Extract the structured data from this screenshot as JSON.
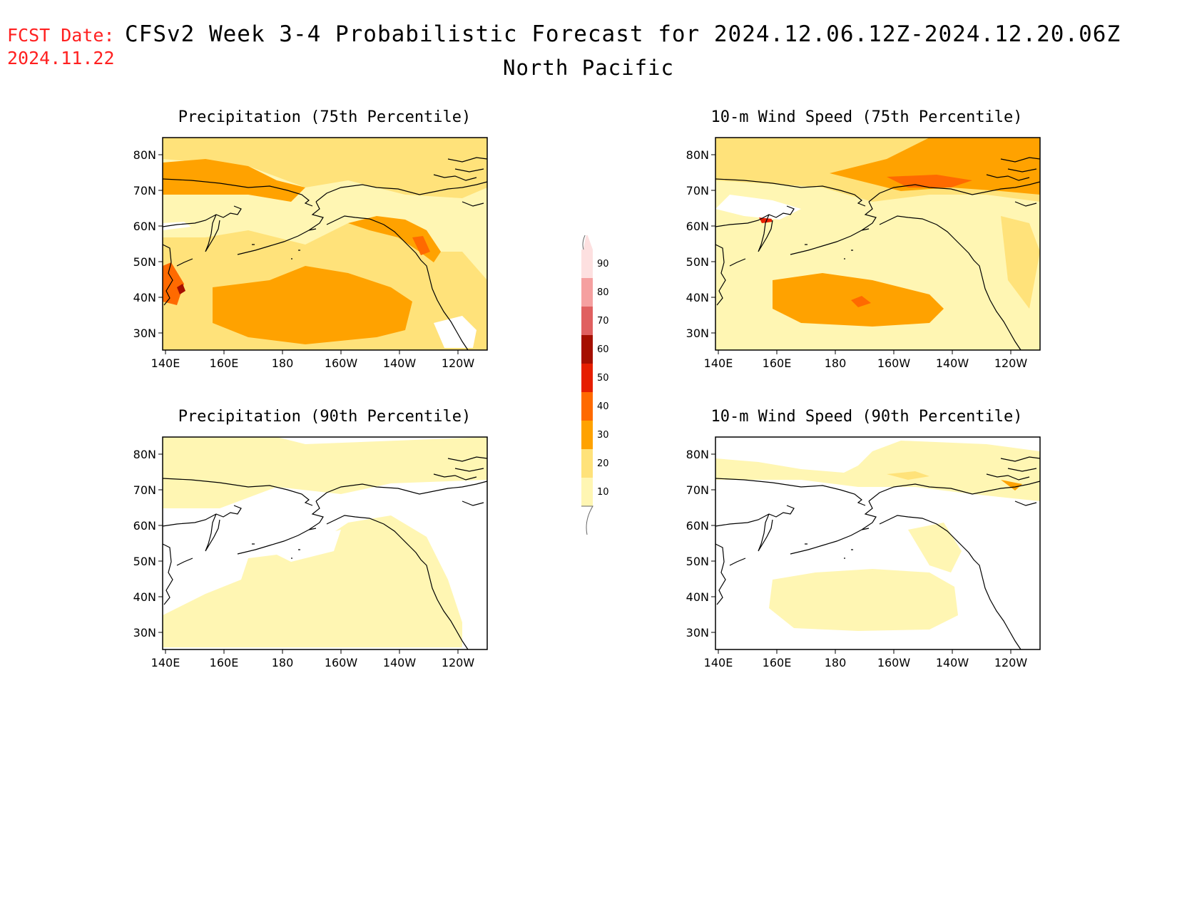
{
  "header": {
    "fcst_label": "FCST Date:",
    "fcst_date": "2024.11.22",
    "title": "CFSv2 Week 3-4 Probabilistic Forecast for 2024.12.06.12Z-2024.12.20.06Z",
    "region": "North Pacific"
  },
  "panels": [
    {
      "title": "Precipitation (75th Percentile)"
    },
    {
      "title": "10-m Wind Speed (75th Percentile)"
    },
    {
      "title": "Precipitation (90th Percentile)"
    },
    {
      "title": "10-m Wind Speed (90th Percentile)"
    }
  ],
  "axes": {
    "lat_labels": [
      "80N",
      "70N",
      "60N",
      "50N",
      "40N",
      "30N"
    ],
    "lon_labels": [
      "140E",
      "160E",
      "180",
      "160W",
      "140W",
      "120W"
    ]
  },
  "colorbar": {
    "levels": [
      "10",
      "20",
      "30",
      "40",
      "50",
      "60",
      "70",
      "80",
      "90"
    ],
    "colors": [
      "#fff6b3",
      "#ffe27a",
      "#ffa200",
      "#ff6a00",
      "#e61e00",
      "#a50f00",
      "#e06060",
      "#f5a0a0",
      "#fde0e0"
    ]
  },
  "colors": {
    "fcst_text": "#ff2020",
    "map_land": "#000000"
  }
}
